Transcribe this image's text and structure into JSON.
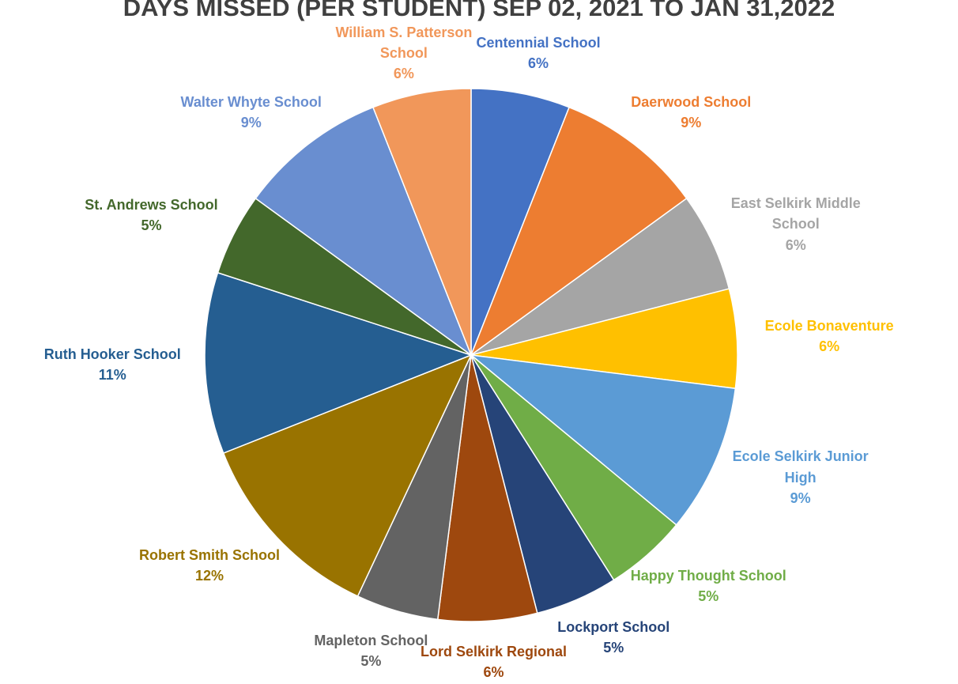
{
  "chart_data": {
    "type": "pie",
    "title": "DAYS MISSED (PER STUDENT) SEP 02, 2021 TO JAN 31,2022",
    "categories": [
      "Centennial School",
      "Daerwood School",
      "East Selkirk Middle School",
      "Ecole Bonaventure",
      "Ecole Selkirk Junior High",
      "Happy Thought School",
      "Lockport School",
      "Lord Selkirk Regional",
      "Mapleton School",
      "Robert Smith School",
      "Ruth Hooker School",
      "St. Andrews School",
      "Walter Whyte School",
      "William S. Patterson School"
    ],
    "values": [
      6,
      9,
      6,
      6,
      9,
      5,
      5,
      6,
      5,
      12,
      11,
      5,
      9,
      6
    ],
    "value_labels": [
      "6%",
      "9%",
      "6%",
      "6%",
      "9%",
      "5%",
      "5%",
      "6%",
      "5%",
      "12%",
      "11%",
      "5%",
      "9%",
      "6%"
    ],
    "colors": [
      "#4472c4",
      "#ed7d31",
      "#a5a5a5",
      "#ffc000",
      "#5b9bd5",
      "#70ad47",
      "#264478",
      "#9e480e",
      "#636363",
      "#997300",
      "#255e91",
      "#43682b",
      "#698ed0",
      "#f1975a"
    ]
  }
}
